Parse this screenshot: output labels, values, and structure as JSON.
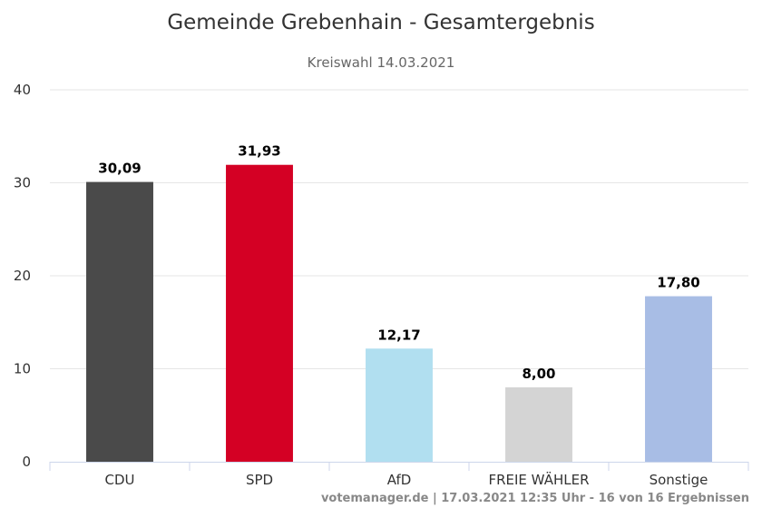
{
  "chart_data": {
    "type": "bar",
    "title": "Gemeinde Grebenhain - Gesamtergebnis",
    "subtitle": "Kreiswahl 14.03.2021",
    "categories": [
      "CDU",
      "SPD",
      "AfD",
      "FREIE WÄHLER",
      "Sonstige"
    ],
    "values": [
      30.09,
      31.93,
      12.17,
      8.0,
      17.8
    ],
    "value_labels": [
      "30,09",
      "31,93",
      "12,17",
      "8,00",
      "17,80"
    ],
    "colors": [
      "#4a4a4a",
      "#d40024",
      "#b1dff0",
      "#d4d4d4",
      "#a8bde5"
    ],
    "yticks": [
      "0",
      "10",
      "20",
      "30",
      "40"
    ],
    "ylim": [
      0,
      40
    ],
    "grid": true,
    "legend": "none"
  },
  "credits": "votemanager.de | 17.03.2021 12:35 Uhr - 16 von 16 Ergebnissen"
}
